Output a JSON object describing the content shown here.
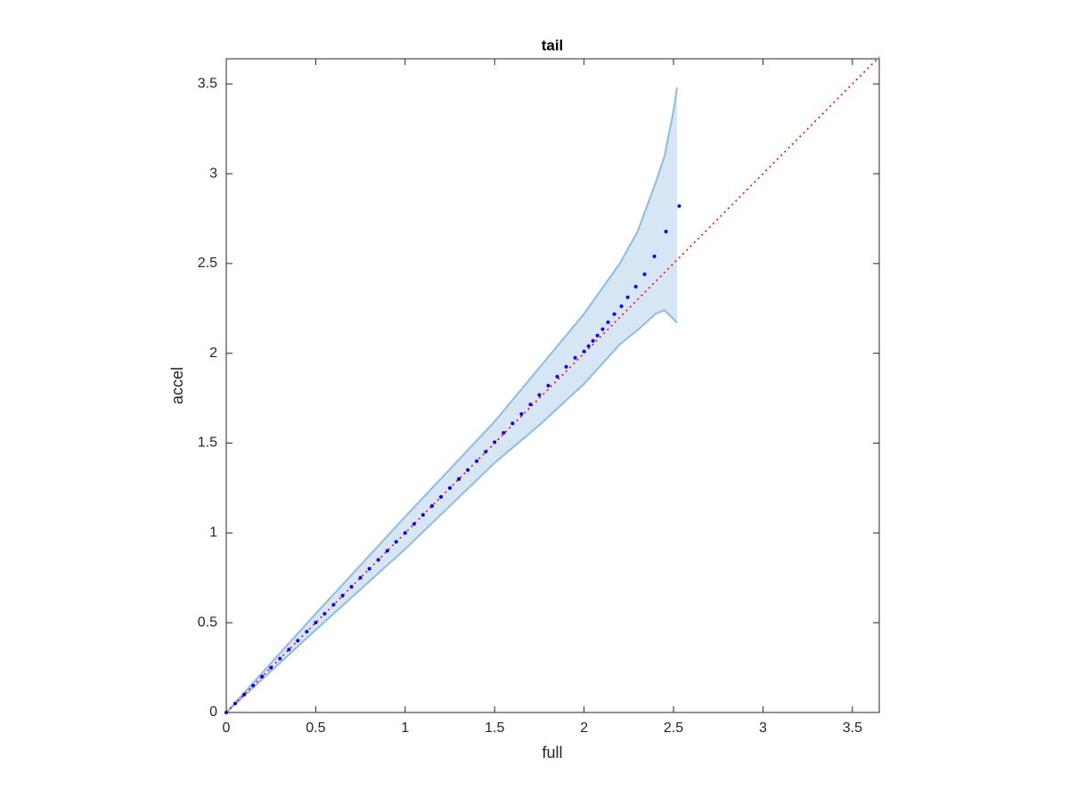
{
  "chart_data": {
    "type": "scatter",
    "title": "tail",
    "xlabel": "full",
    "ylabel": "accel",
    "xlim": [
      0,
      3.65
    ],
    "ylim": [
      0,
      3.64
    ],
    "xticks": [
      0,
      0.5,
      1,
      1.5,
      2,
      2.5,
      3,
      3.5
    ],
    "yticks": [
      0,
      0.5,
      1,
      1.5,
      2,
      2.5,
      3,
      3.5
    ],
    "points": {
      "color": "#0000ff",
      "x": [
        0,
        0.05,
        0.1,
        0.15,
        0.2,
        0.25,
        0.3,
        0.35,
        0.4,
        0.45,
        0.5,
        0.55,
        0.6,
        0.65,
        0.7,
        0.75,
        0.8,
        0.85,
        0.9,
        0.95,
        1,
        1.05,
        1.1,
        1.15,
        1.2,
        1.25,
        1.3,
        1.35,
        1.4,
        1.45,
        1.5,
        1.55,
        1.6,
        1.65,
        1.7,
        1.75,
        1.8,
        1.85,
        1.9,
        1.95,
        2.0,
        2.025,
        2.05,
        2.075,
        2.104,
        2.134,
        2.169,
        2.209,
        2.244,
        2.289,
        2.338,
        2.393,
        2.458,
        2.532
      ],
      "y": [
        0,
        0.05,
        0.1,
        0.15,
        0.2,
        0.25,
        0.3,
        0.35,
        0.4,
        0.45,
        0.5,
        0.55,
        0.6,
        0.65,
        0.7,
        0.75,
        0.8,
        0.85,
        0.9,
        0.95,
        1,
        1.05,
        1.1,
        1.15,
        1.2,
        1.25,
        1.3,
        1.35,
        1.4,
        1.452,
        1.505,
        1.557,
        1.61,
        1.662,
        1.715,
        1.768,
        1.82,
        1.87,
        1.925,
        1.975,
        2.01,
        2.04,
        2.069,
        2.099,
        2.134,
        2.173,
        2.218,
        2.262,
        2.312,
        2.371,
        2.44,
        2.54,
        2.678,
        2.82
      ]
    },
    "band": {
      "fill": "#d6e6f4",
      "edge": "#8ebbde",
      "x": [
        0,
        0.5,
        1,
        1.5,
        1.75,
        2,
        2.2,
        2.3,
        2.4,
        2.45,
        2.5,
        2.52
      ],
      "upper": [
        0,
        0.55,
        1.09,
        1.62,
        1.92,
        2.22,
        2.5,
        2.68,
        2.95,
        3.1,
        3.35,
        3.48
      ],
      "lower": [
        0,
        0.46,
        0.91,
        1.39,
        1.6,
        1.83,
        2.05,
        2.13,
        2.22,
        2.24,
        2.19,
        2.17
      ]
    },
    "reference_color": "#ff0000"
  }
}
